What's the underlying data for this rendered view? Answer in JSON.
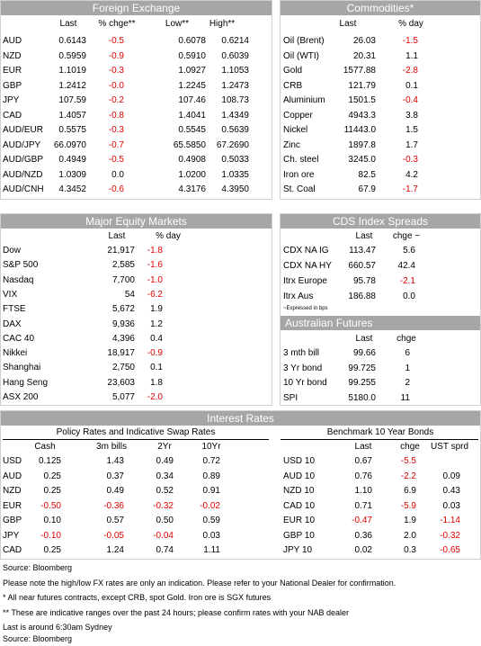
{
  "fx": {
    "title": "Foreign Exchange",
    "columns": [
      "Last",
      "% chge**",
      "Low**",
      "High**"
    ],
    "rows": [
      [
        "AUD",
        "0.6143",
        "-0.5",
        "0.6078",
        "0.6214"
      ],
      [
        "NZD",
        "0.5959",
        "-0.9",
        "0.5910",
        "0.6039"
      ],
      [
        "EUR",
        "1.1019",
        "-0.3",
        "1.0927",
        "1.1053"
      ],
      [
        "GBP",
        "1.2412",
        "-0.0",
        "1.2245",
        "1.2473"
      ],
      [
        "JPY",
        "107.59",
        "-0.2",
        "107.46",
        "108.73"
      ],
      [
        "CAD",
        "1.4057",
        "-0.8",
        "1.4041",
        "1.4349"
      ],
      [
        "AUD/EUR",
        "0.5575",
        "-0.3",
        "0.5545",
        "0.5639"
      ],
      [
        "AUD/JPY",
        "66.0970",
        "-0.7",
        "65.5850",
        "67.2690"
      ],
      [
        "AUD/GBP",
        "0.4949",
        "-0.5",
        "0.4908",
        "0.5033"
      ],
      [
        "AUD/NZD",
        "1.0309",
        "0.0",
        "1.0200",
        "1.0335"
      ],
      [
        "AUD/CNH",
        "4.3452",
        "-0.6",
        "4.3176",
        "4.3950"
      ]
    ]
  },
  "commodities": {
    "title": "Commodities*",
    "columns": [
      "Last",
      "% day"
    ],
    "rows": [
      [
        "Oil (Brent)",
        "26.03",
        "-1.5"
      ],
      [
        "Oil (WTI)",
        "20.31",
        "1.1"
      ],
      [
        "Gold",
        "1577.88",
        "-2.8"
      ],
      [
        "CRB",
        "121.79",
        "0.1"
      ],
      [
        "Aluminium",
        "1501.5",
        "-0.4"
      ],
      [
        "Copper",
        "4943.3",
        "3.8"
      ],
      [
        "Nickel",
        "11443.0",
        "1.5"
      ],
      [
        "Zinc",
        "1897.8",
        "1.7"
      ],
      [
        "Ch. steel",
        "3245.0",
        "-0.3"
      ],
      [
        "Iron ore",
        "82.5",
        "4.2"
      ],
      [
        "St. Coal",
        "67.9",
        "-1.7"
      ]
    ]
  },
  "equity": {
    "title": "Major Equity Markets",
    "columns": [
      "Last",
      "% day"
    ],
    "rows": [
      [
        "Dow",
        "21,917",
        "-1.8"
      ],
      [
        "S&P 500",
        "2,585",
        "-1.6"
      ],
      [
        "Nasdaq",
        "7,700",
        "-1.0"
      ],
      [
        "VIX",
        "54",
        "-6.2"
      ],
      [
        "FTSE",
        "5,672",
        "1.9"
      ],
      [
        "DAX",
        "9,936",
        "1.2"
      ],
      [
        "CAC 40",
        "4,396",
        "0.4"
      ],
      [
        "Nikkei",
        "18,917",
        "-0.9"
      ],
      [
        "Shanghai",
        "2,750",
        "0.1"
      ],
      [
        "Hang Seng",
        "23,603",
        "1.8"
      ],
      [
        "ASX 200",
        "5,077",
        "-2.0"
      ]
    ]
  },
  "cds": {
    "title": "CDS Index Spreads",
    "columns": [
      "Last",
      "chge ~"
    ],
    "rows": [
      [
        "CDX NA IG",
        "113.47",
        "5.6"
      ],
      [
        "CDX NA HY",
        "660.57",
        "42.4"
      ],
      [
        "Itrx Europe",
        "95.78",
        "-2.1"
      ],
      [
        "Itrx Aus",
        "186.88",
        "0.0"
      ]
    ],
    "note": "~Expressed in bps"
  },
  "futures": {
    "title": "Australian Futures",
    "columns": [
      "Last",
      "chge"
    ],
    "rows": [
      [
        "3 mth bill",
        "99.66",
        "6"
      ],
      [
        "3 Yr bond",
        "99.725",
        "1"
      ],
      [
        "10 Yr bond",
        "99.255",
        "2"
      ],
      [
        "SPI",
        "5180.0",
        "11"
      ]
    ]
  },
  "interest_rates": {
    "title": "Interest Rates",
    "policy": {
      "title": "Policy Rates and Indicative Swap Rates",
      "columns": [
        "Cash",
        "3m bills",
        "2Yr",
        "10Yr"
      ],
      "rows": [
        [
          "USD",
          "0.125",
          "1.43",
          "0.49",
          "0.72"
        ],
        [
          "AUD",
          "0.25",
          "0.37",
          "0.34",
          "0.89"
        ],
        [
          "NZD",
          "0.25",
          "0.49",
          "0.52",
          "0.91"
        ],
        [
          "EUR",
          "-0.50",
          "-0.36",
          "-0.32",
          "-0.02"
        ],
        [
          "GBP",
          "0.10",
          "0.57",
          "0.50",
          "0.59"
        ],
        [
          "JPY",
          "-0.10",
          "-0.05",
          "-0.04",
          "0.03"
        ],
        [
          "CAD",
          "0.25",
          "1.24",
          "0.74",
          "1.11"
        ]
      ]
    },
    "bonds": {
      "title": "Benchmark 10 Year Bonds",
      "columns": [
        "Last",
        "chge",
        "UST sprd"
      ],
      "rows": [
        [
          "USD 10",
          "0.67",
          "-5.5"
        ],
        [
          "AUD 10",
          "0.76",
          "-2.2",
          "0.09"
        ],
        [
          "NZD 10",
          "1.10",
          "6.9",
          "0.43"
        ],
        [
          "CAD 10",
          "0.71",
          "-5.9",
          "0.03"
        ],
        [
          "EUR 10",
          "-0.47",
          "1.9",
          "-1.14"
        ],
        [
          "GBP 10",
          "0.36",
          "2.0",
          "-0.32"
        ],
        [
          "JPY 10",
          "0.02",
          "0.3",
          "-0.65"
        ]
      ]
    }
  },
  "footer": [
    "Source: Bloomberg",
    "Please note the high/low FX rates are only an indication. Please refer to your National Dealer for confirmation.",
    "* All near futures contracts, except CRB, spot Gold. Iron ore is SGX futures",
    "** These are indicative ranges over the past 24 hours; please confirm rates with your NAB dealer",
    "Last is around 6:30am Sydney",
    "Source: Bloomberg"
  ]
}
